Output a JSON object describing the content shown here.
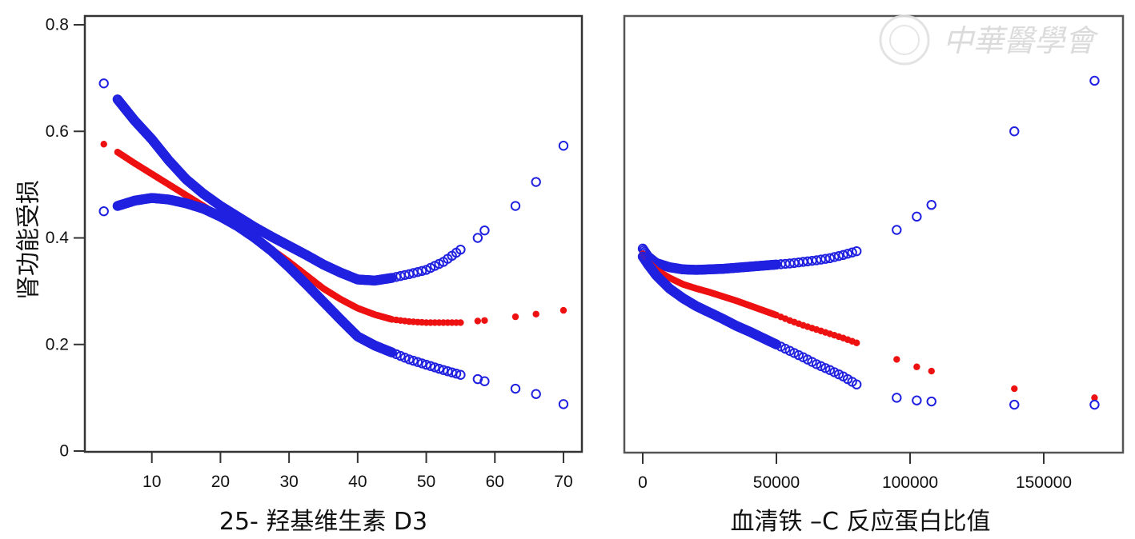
{
  "chart_data": [
    {
      "type": "scatter",
      "title": "",
      "xlabel": "25- 羟基维生素 D3",
      "ylabel": "肾功能受损",
      "xlim": [
        0,
        72.5
      ],
      "ylim": [
        0,
        0.8
      ],
      "xticks": [
        "10",
        "20",
        "30",
        "40",
        "50",
        "60",
        "70"
      ],
      "xtick_values": [
        10,
        20,
        30,
        40,
        50,
        60,
        70
      ],
      "yticks": [
        "0",
        "0.2",
        "0.4",
        "0.6",
        "0.8"
      ],
      "ytick_values": [
        0,
        0.2,
        0.4,
        0.6,
        0.8
      ],
      "grid": false,
      "series": [
        {
          "name": "upper",
          "marker": "open-circle",
          "color": "#2020e0",
          "x": [
            3,
            5,
            7.5,
            10,
            12.5,
            15,
            17.5,
            20,
            22.5,
            25,
            27.5,
            30,
            32.5,
            35,
            37.5,
            40,
            42.5,
            45,
            47.5,
            50,
            52.5,
            55,
            57.5,
            58.5,
            63,
            66,
            70
          ],
          "y": [
            0.69,
            0.66,
            0.62,
            0.585,
            0.545,
            0.51,
            0.483,
            0.46,
            0.44,
            0.42,
            0.402,
            0.385,
            0.368,
            0.35,
            0.335,
            0.322,
            0.32,
            0.325,
            0.332,
            0.34,
            0.355,
            0.378,
            0.4,
            0.414,
            0.46,
            0.505,
            0.573
          ]
        },
        {
          "name": "estimate",
          "marker": "filled-circle",
          "color": "#ee1111",
          "x": [
            3,
            5,
            7.5,
            10,
            12.5,
            15,
            17.5,
            20,
            22.5,
            25,
            27.5,
            30,
            32.5,
            35,
            37.5,
            40,
            42.5,
            45,
            47.5,
            50,
            52.5,
            55,
            57.5,
            58.5,
            63,
            66,
            70
          ],
          "y": [
            0.576,
            0.561,
            0.54,
            0.52,
            0.5,
            0.48,
            0.46,
            0.44,
            0.42,
            0.4,
            0.378,
            0.355,
            0.33,
            0.305,
            0.285,
            0.268,
            0.256,
            0.247,
            0.243,
            0.241,
            0.241,
            0.241,
            0.244,
            0.245,
            0.252,
            0.257,
            0.264
          ]
        },
        {
          "name": "lower",
          "marker": "open-circle",
          "color": "#2020e0",
          "x": [
            3,
            5,
            7.5,
            10,
            12.5,
            15,
            17.5,
            20,
            22.5,
            25,
            27.5,
            30,
            32.5,
            35,
            37.5,
            40,
            42.5,
            45,
            47.5,
            50,
            52.5,
            55,
            57.5,
            58.5,
            63,
            66,
            70
          ],
          "y": [
            0.45,
            0.46,
            0.47,
            0.475,
            0.472,
            0.465,
            0.455,
            0.44,
            0.422,
            0.4,
            0.375,
            0.345,
            0.313,
            0.28,
            0.247,
            0.215,
            0.198,
            0.185,
            0.172,
            0.162,
            0.152,
            0.143,
            0.135,
            0.131,
            0.117,
            0.107,
            0.088
          ]
        }
      ]
    },
    {
      "type": "scatter",
      "title": "",
      "xlabel": "血清铁 –C 反应蛋白比值",
      "ylabel": "",
      "xlim": [
        -7800,
        178500
      ],
      "ylim": [
        0,
        0.8
      ],
      "xticks": [
        "0",
        "50000",
        "100000",
        "150000"
      ],
      "xtick_values": [
        0,
        50000,
        100000,
        150000
      ],
      "yticks": [],
      "grid": false,
      "series": [
        {
          "name": "upper",
          "marker": "open-circle",
          "color": "#2020e0",
          "x": [
            0,
            2000,
            5000,
            10000,
            15000,
            20000,
            25000,
            30000,
            35000,
            40000,
            45000,
            50000,
            55000,
            60000,
            65000,
            70000,
            75000,
            80000,
            95000,
            102500,
            108000,
            139000,
            169000
          ],
          "y": [
            0.38,
            0.365,
            0.353,
            0.345,
            0.341,
            0.34,
            0.341,
            0.342,
            0.344,
            0.346,
            0.348,
            0.35,
            0.352,
            0.355,
            0.358,
            0.362,
            0.368,
            0.375,
            0.415,
            0.44,
            0.462,
            0.6,
            0.695
          ]
        },
        {
          "name": "estimate",
          "marker": "filled-circle",
          "color": "#ee1111",
          "x": [
            0,
            2000,
            5000,
            10000,
            15000,
            20000,
            25000,
            30000,
            35000,
            40000,
            45000,
            50000,
            55000,
            60000,
            65000,
            70000,
            75000,
            80000,
            95000,
            102500,
            108000,
            139000,
            169000
          ],
          "y": [
            0.37,
            0.355,
            0.34,
            0.325,
            0.313,
            0.305,
            0.298,
            0.29,
            0.282,
            0.273,
            0.264,
            0.255,
            0.245,
            0.236,
            0.228,
            0.22,
            0.212,
            0.203,
            0.172,
            0.158,
            0.15,
            0.117,
            0.1
          ]
        },
        {
          "name": "lower",
          "marker": "open-circle",
          "color": "#2020e0",
          "x": [
            0,
            2000,
            5000,
            10000,
            15000,
            20000,
            25000,
            30000,
            35000,
            40000,
            45000,
            50000,
            55000,
            60000,
            65000,
            70000,
            75000,
            80000,
            95000,
            102500,
            108000,
            139000,
            169000
          ],
          "y": [
            0.365,
            0.35,
            0.33,
            0.305,
            0.287,
            0.272,
            0.26,
            0.248,
            0.235,
            0.224,
            0.212,
            0.2,
            0.188,
            0.176,
            0.163,
            0.152,
            0.14,
            0.125,
            0.1,
            0.095,
            0.093,
            0.087,
            0.087
          ]
        }
      ]
    }
  ],
  "watermark": {
    "text": "中華醫學會"
  }
}
